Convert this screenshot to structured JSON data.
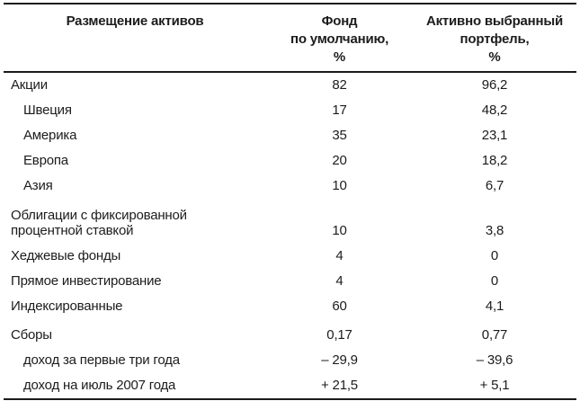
{
  "table": {
    "columns": [
      {
        "lines": [
          "Размещение активов"
        ]
      },
      {
        "lines": [
          "Фонд",
          "по умолчанию,",
          "%"
        ]
      },
      {
        "lines": [
          "Активно выбранный",
          "портфель,",
          "%"
        ]
      }
    ],
    "rows": [
      {
        "label": "Акции",
        "fund": "82",
        "portfolio": "96,2"
      },
      {
        "label": "Швеция",
        "fund": "17",
        "portfolio": "48,2"
      },
      {
        "label": "Америка",
        "fund": "35",
        "portfolio": "23,1"
      },
      {
        "label": "Европа",
        "fund": "20",
        "portfolio": "18,2"
      },
      {
        "label": "Азия",
        "fund": "10",
        "portfolio": "6,7"
      },
      {
        "label_lines": [
          "Облигации с фиксированной",
          "процентной ставкой"
        ],
        "fund": "10",
        "portfolio": "3,8"
      },
      {
        "label": "Хеджевые фонды",
        "fund": "4",
        "portfolio": "0"
      },
      {
        "label": "Прямое инвестирование",
        "fund": "4",
        "portfolio": "0"
      },
      {
        "label": "Индексированные",
        "fund": "60",
        "portfolio": "4,1"
      },
      {
        "label": "Сборы",
        "fund": "0,17",
        "portfolio": "0,77"
      },
      {
        "label": "доход за первые три года",
        "fund": "– 29,9",
        "portfolio": "– 39,6"
      },
      {
        "label": "доход на июль 2007 года",
        "fund": "+ 21,5",
        "portfolio": "+ 5,1"
      }
    ]
  }
}
